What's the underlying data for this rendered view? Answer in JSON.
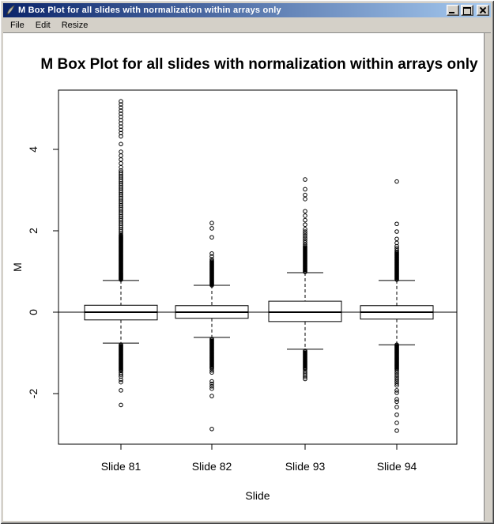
{
  "window": {
    "title": "M Box Plot for all slides with normalization within arrays only"
  },
  "icons": {
    "app": "feather-icon",
    "minimize": "minimize-icon",
    "maximize": "maximize-icon",
    "close": "close-icon"
  },
  "menu": {
    "items": [
      {
        "label": "File"
      },
      {
        "label": "Edit"
      },
      {
        "label": "Resize"
      }
    ]
  },
  "colors": {
    "titlebar_left": "#0a246a",
    "titlebar_right": "#a6caf0",
    "chrome": "#d4d0c8",
    "plot_bg": "#ffffff",
    "ink": "#000000"
  },
  "chart_data": {
    "type": "boxplot",
    "title": "M Box Plot for all slides with normalization within arrays only",
    "xlabel": "Slide",
    "ylabel": "M",
    "categories": [
      "Slide 81",
      "Slide 82",
      "Slide 93",
      "Slide 94"
    ],
    "yticks": [
      {
        "value": -2,
        "label": "-2"
      },
      {
        "value": 0,
        "label": "0"
      },
      {
        "value": 2,
        "label": "2"
      },
      {
        "value": 4,
        "label": "4"
      }
    ],
    "ylim": [
      -3.2,
      5.5
    ],
    "refline": 0,
    "grid": false,
    "boxes": [
      {
        "label": "Slide 81",
        "q1": -0.19,
        "median": 0.0,
        "q3": 0.17,
        "whisker_low": -0.76,
        "whisker_high": 0.78,
        "outlier_clusters": [
          {
            "from": 0.8,
            "to": 1.88,
            "n": 56,
            "solid": true
          },
          {
            "from": 1.9,
            "to": 3.48,
            "n": 36
          },
          {
            "from": 3.56,
            "to": 3.94,
            "n": 5
          },
          {
            "from": 4.13,
            "to": 4.13,
            "n": 1
          },
          {
            "from": 4.32,
            "to": 4.72,
            "n": 6
          },
          {
            "from": 4.8,
            "to": 5.18,
            "n": 6
          },
          {
            "from": -0.8,
            "to": -1.42,
            "n": 30,
            "solid": true
          },
          {
            "from": -1.44,
            "to": -1.58,
            "n": 4
          },
          {
            "from": -1.66,
            "to": -1.72,
            "n": 2
          },
          {
            "from": -1.92,
            "to": -1.92,
            "n": 1
          },
          {
            "from": -2.28,
            "to": -2.28,
            "n": 1
          }
        ]
      },
      {
        "label": "Slide 82",
        "q1": -0.15,
        "median": 0.0,
        "q3": 0.16,
        "whisker_low": -0.62,
        "whisker_high": 0.66,
        "outlier_clusters": [
          {
            "from": 0.66,
            "to": 1.26,
            "n": 26,
            "solid": true
          },
          {
            "from": 1.3,
            "to": 1.44,
            "n": 3
          },
          {
            "from": 1.84,
            "to": 1.84,
            "n": 1
          },
          {
            "from": 2.06,
            "to": 2.19,
            "n": 2
          },
          {
            "from": -0.66,
            "to": -1.36,
            "n": 28,
            "solid": true
          },
          {
            "from": -1.38,
            "to": -1.48,
            "n": 3
          },
          {
            "from": -1.7,
            "to": -1.88,
            "n": 4
          },
          {
            "from": -2.06,
            "to": -2.06,
            "n": 1
          },
          {
            "from": -2.87,
            "to": -2.87,
            "n": 1
          }
        ]
      },
      {
        "label": "Slide 93",
        "q1": -0.23,
        "median": 0.0,
        "q3": 0.27,
        "whisker_low": -0.91,
        "whisker_high": 0.97,
        "outlier_clusters": [
          {
            "from": 0.99,
            "to": 1.62,
            "n": 26,
            "solid": true
          },
          {
            "from": 1.66,
            "to": 1.98,
            "n": 7
          },
          {
            "from": 2.04,
            "to": 2.48,
            "n": 5
          },
          {
            "from": 2.78,
            "to": 2.88,
            "n": 2
          },
          {
            "from": 3.02,
            "to": 3.02,
            "n": 1
          },
          {
            "from": 3.26,
            "to": 3.26,
            "n": 1
          },
          {
            "from": -0.95,
            "to": -1.38,
            "n": 18,
            "solid": true
          },
          {
            "from": -1.4,
            "to": -1.64,
            "n": 6
          }
        ]
      },
      {
        "label": "Slide 94",
        "q1": -0.17,
        "median": 0.0,
        "q3": 0.16,
        "whisker_low": -0.8,
        "whisker_high": 0.78,
        "outlier_clusters": [
          {
            "from": 0.8,
            "to": 1.48,
            "n": 30,
            "solid": true
          },
          {
            "from": 1.52,
            "to": 1.62,
            "n": 3
          },
          {
            "from": 1.7,
            "to": 1.8,
            "n": 2
          },
          {
            "from": 1.98,
            "to": 1.98,
            "n": 1
          },
          {
            "from": 2.17,
            "to": 2.17,
            "n": 1
          },
          {
            "from": 3.21,
            "to": 3.21,
            "n": 1
          },
          {
            "from": -0.8,
            "to": -1.4,
            "n": 28,
            "solid": true
          },
          {
            "from": -1.44,
            "to": -1.8,
            "n": 8
          },
          {
            "from": -1.92,
            "to": -1.98,
            "n": 2
          },
          {
            "from": -2.14,
            "to": -2.2,
            "n": 2
          },
          {
            "from": -2.33,
            "to": -2.33,
            "n": 1
          },
          {
            "from": -2.52,
            "to": -2.52,
            "n": 1
          },
          {
            "from": -2.72,
            "to": -2.72,
            "n": 1
          },
          {
            "from": -2.91,
            "to": -2.91,
            "n": 1
          }
        ]
      }
    ]
  }
}
